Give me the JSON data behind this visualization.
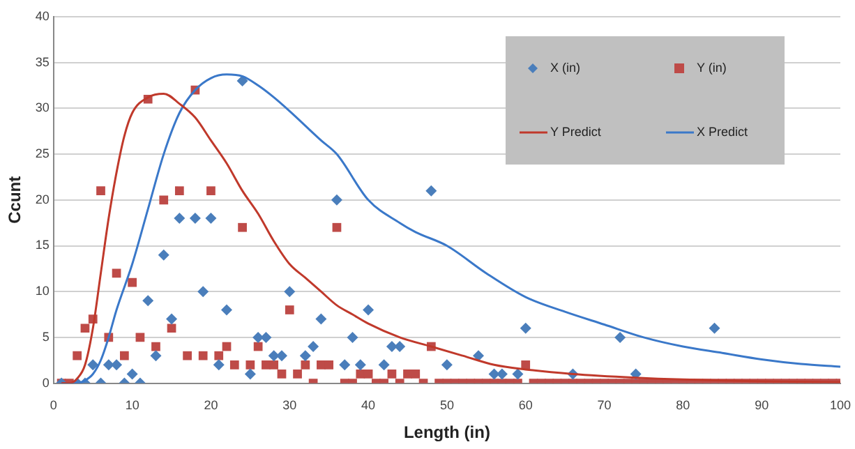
{
  "chart_data": {
    "type": "scatter",
    "xlabel": "Length (in)",
    "ylabel": "Ccunt",
    "xlim": [
      0,
      100
    ],
    "xticks": [
      0,
      10,
      20,
      30,
      40,
      50,
      60,
      70,
      80,
      90,
      100
    ],
    "ylim": [
      0,
      40
    ],
    "yticks": [
      0,
      5,
      10,
      15,
      20,
      25,
      30,
      35,
      40
    ],
    "grid": "y",
    "legend": "top right",
    "series": [
      {
        "name": "X (in)",
        "type": "scatter",
        "marker": "diamond",
        "color": "#4a7ebb",
        "x": [
          1,
          3,
          4,
          5,
          6,
          7,
          8,
          9,
          10,
          11,
          12,
          13,
          14,
          15,
          16,
          18,
          19,
          20,
          21,
          22,
          24,
          25,
          26,
          27,
          28,
          29,
          30,
          32,
          33,
          34,
          36,
          37,
          38,
          39,
          40,
          42,
          43,
          44,
          48,
          50,
          54,
          56,
          57,
          59,
          60,
          66,
          72,
          74,
          84
        ],
        "values": [
          0,
          0,
          0,
          2,
          0,
          2,
          2,
          0,
          1,
          0,
          9,
          3,
          14,
          7,
          18,
          18,
          10,
          18,
          2,
          8,
          33,
          1,
          5,
          5,
          3,
          3,
          10,
          3,
          4,
          7,
          20,
          2,
          5,
          2,
          8,
          2,
          4,
          4,
          21,
          2,
          3,
          1,
          1,
          1,
          6,
          1,
          5,
          1,
          6
        ]
      },
      {
        "name": "Y (in)",
        "type": "scatter",
        "marker": "square",
        "color": "#be4b48",
        "x": [
          1,
          2,
          3,
          4,
          5,
          6,
          7,
          8,
          9,
          10,
          11,
          12,
          13,
          14,
          15,
          16,
          17,
          18,
          19,
          20,
          21,
          22,
          23,
          24,
          25,
          26,
          27,
          28,
          29,
          30,
          31,
          32,
          33,
          34,
          35,
          36,
          37,
          38,
          39,
          40,
          41,
          42,
          43,
          44,
          45,
          46,
          47,
          48,
          49,
          50,
          51,
          52,
          53,
          54,
          55,
          56,
          57,
          58,
          59,
          60,
          61,
          62,
          63,
          64,
          65,
          66,
          67,
          68,
          69,
          70,
          71,
          72,
          73,
          74,
          75,
          76,
          77,
          78,
          79,
          80,
          81,
          82,
          83,
          84,
          85,
          86,
          87,
          88,
          89,
          90,
          91,
          92,
          93,
          94,
          95,
          96,
          97,
          98,
          99,
          100
        ],
        "values": [
          0,
          0,
          3,
          6,
          7,
          21,
          5,
          12,
          3,
          11,
          5,
          31,
          4,
          20,
          6,
          21,
          3,
          32,
          3,
          21,
          3,
          4,
          2,
          17,
          2,
          4,
          2,
          2,
          1,
          8,
          1,
          2,
          0,
          2,
          2,
          17,
          0,
          0,
          1,
          1,
          0,
          0,
          1,
          0,
          1,
          1,
          0,
          4,
          0,
          0,
          0,
          0,
          0,
          0,
          0,
          0,
          0,
          0,
          0,
          2,
          0,
          0,
          0,
          0,
          0,
          0,
          0,
          0,
          0,
          0,
          0,
          0,
          0,
          0,
          0,
          0,
          0,
          0,
          0,
          0,
          0,
          0,
          0,
          0,
          0,
          0,
          0,
          0,
          0,
          0,
          0,
          0,
          0,
          0,
          0,
          0,
          0,
          0,
          0,
          0
        ]
      },
      {
        "name": "Y Predict",
        "type": "line",
        "marker": "none",
        "color": "#c0392b",
        "x": [
          1,
          2,
          3,
          4,
          5,
          6,
          7,
          8,
          9,
          10,
          12,
          14,
          16,
          18,
          20,
          22,
          24,
          26,
          28,
          30,
          32,
          34,
          36,
          38,
          40,
          44,
          48,
          52,
          56,
          60,
          66,
          74,
          80,
          90,
          100
        ],
        "values": [
          0,
          0,
          0.5,
          2,
          6,
          12,
          18,
          23,
          27,
          29.5,
          31.2,
          31.6,
          30.5,
          29,
          26.5,
          24,
          21,
          18.5,
          15.5,
          13,
          11.5,
          10,
          8.5,
          7.5,
          6.5,
          5,
          4,
          3,
          2,
          1.5,
          1,
          0.6,
          0.4,
          0.2,
          0.1
        ]
      },
      {
        "name": "X Predict",
        "type": "line",
        "marker": "none",
        "color": "#3a78c9",
        "x": [
          1,
          3,
          4,
          5,
          6,
          7,
          8,
          10,
          12,
          14,
          16,
          18,
          20,
          22,
          24,
          26,
          28,
          30,
          34,
          36,
          40,
          44,
          46,
          50,
          55,
          60,
          65,
          70,
          75,
          80,
          85,
          90,
          95,
          100
        ],
        "values": [
          0,
          0,
          0.3,
          1,
          2.5,
          5,
          8,
          13,
          19,
          25,
          29.5,
          32,
          33.3,
          33.7,
          33.5,
          32.5,
          31.2,
          29.7,
          26.5,
          25,
          20,
          17.5,
          16.5,
          15,
          12,
          9.4,
          7.8,
          6.4,
          5,
          4,
          3.3,
          2.6,
          2.1,
          1.8
        ]
      }
    ]
  }
}
